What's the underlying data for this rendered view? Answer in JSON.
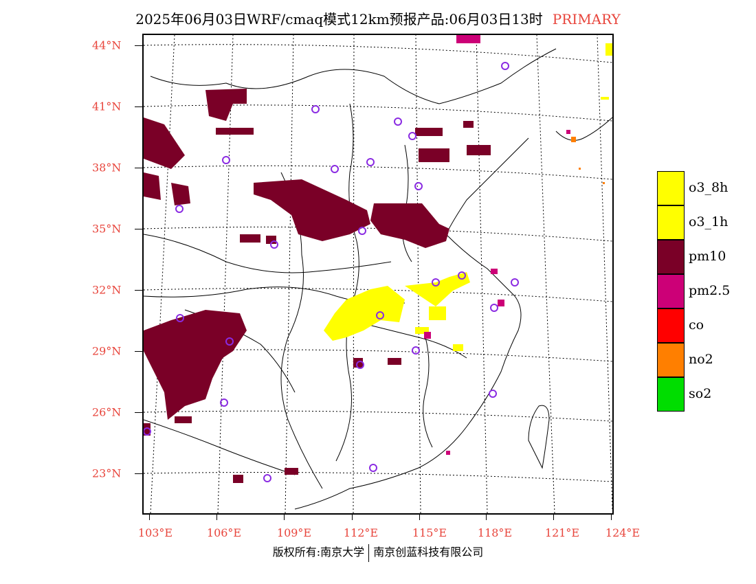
{
  "title": {
    "main": "2025年06月03日WRF/cmaq模式12km预报产品:06月03日13时",
    "tag": "PRIMARY"
  },
  "axes": {
    "lat_labels": [
      "44°N",
      "41°N",
      "38°N",
      "35°N",
      "32°N",
      "29°N",
      "26°N",
      "23°N"
    ],
    "lon_labels": [
      "103°E",
      "106°E",
      "109°E",
      "112°E",
      "115°E",
      "118°E",
      "121°E",
      "124°E"
    ]
  },
  "legend": {
    "items": [
      {
        "label": "o3_8h",
        "color": "#ffff00"
      },
      {
        "label": "o3_1h",
        "color": "#ffff00"
      },
      {
        "label": "pm10",
        "color": "#7a0027"
      },
      {
        "label": "pm2.5",
        "color": "#cc0077"
      },
      {
        "label": "co",
        "color": "#ff0000"
      },
      {
        "label": "no2",
        "color": "#ff7f00"
      },
      {
        "label": "so2",
        "color": "#00dd00"
      }
    ]
  },
  "copyright": {
    "left": "版权所有:南京大学",
    "right": "南京创蓝科技有限公司"
  },
  "colors": {
    "axis_label": "#e8453c",
    "station_marker": "#8a2be2",
    "o3": "#ffff00",
    "pm10": "#7a0027",
    "pm25": "#cc0077",
    "no2": "#ff7f00"
  }
}
